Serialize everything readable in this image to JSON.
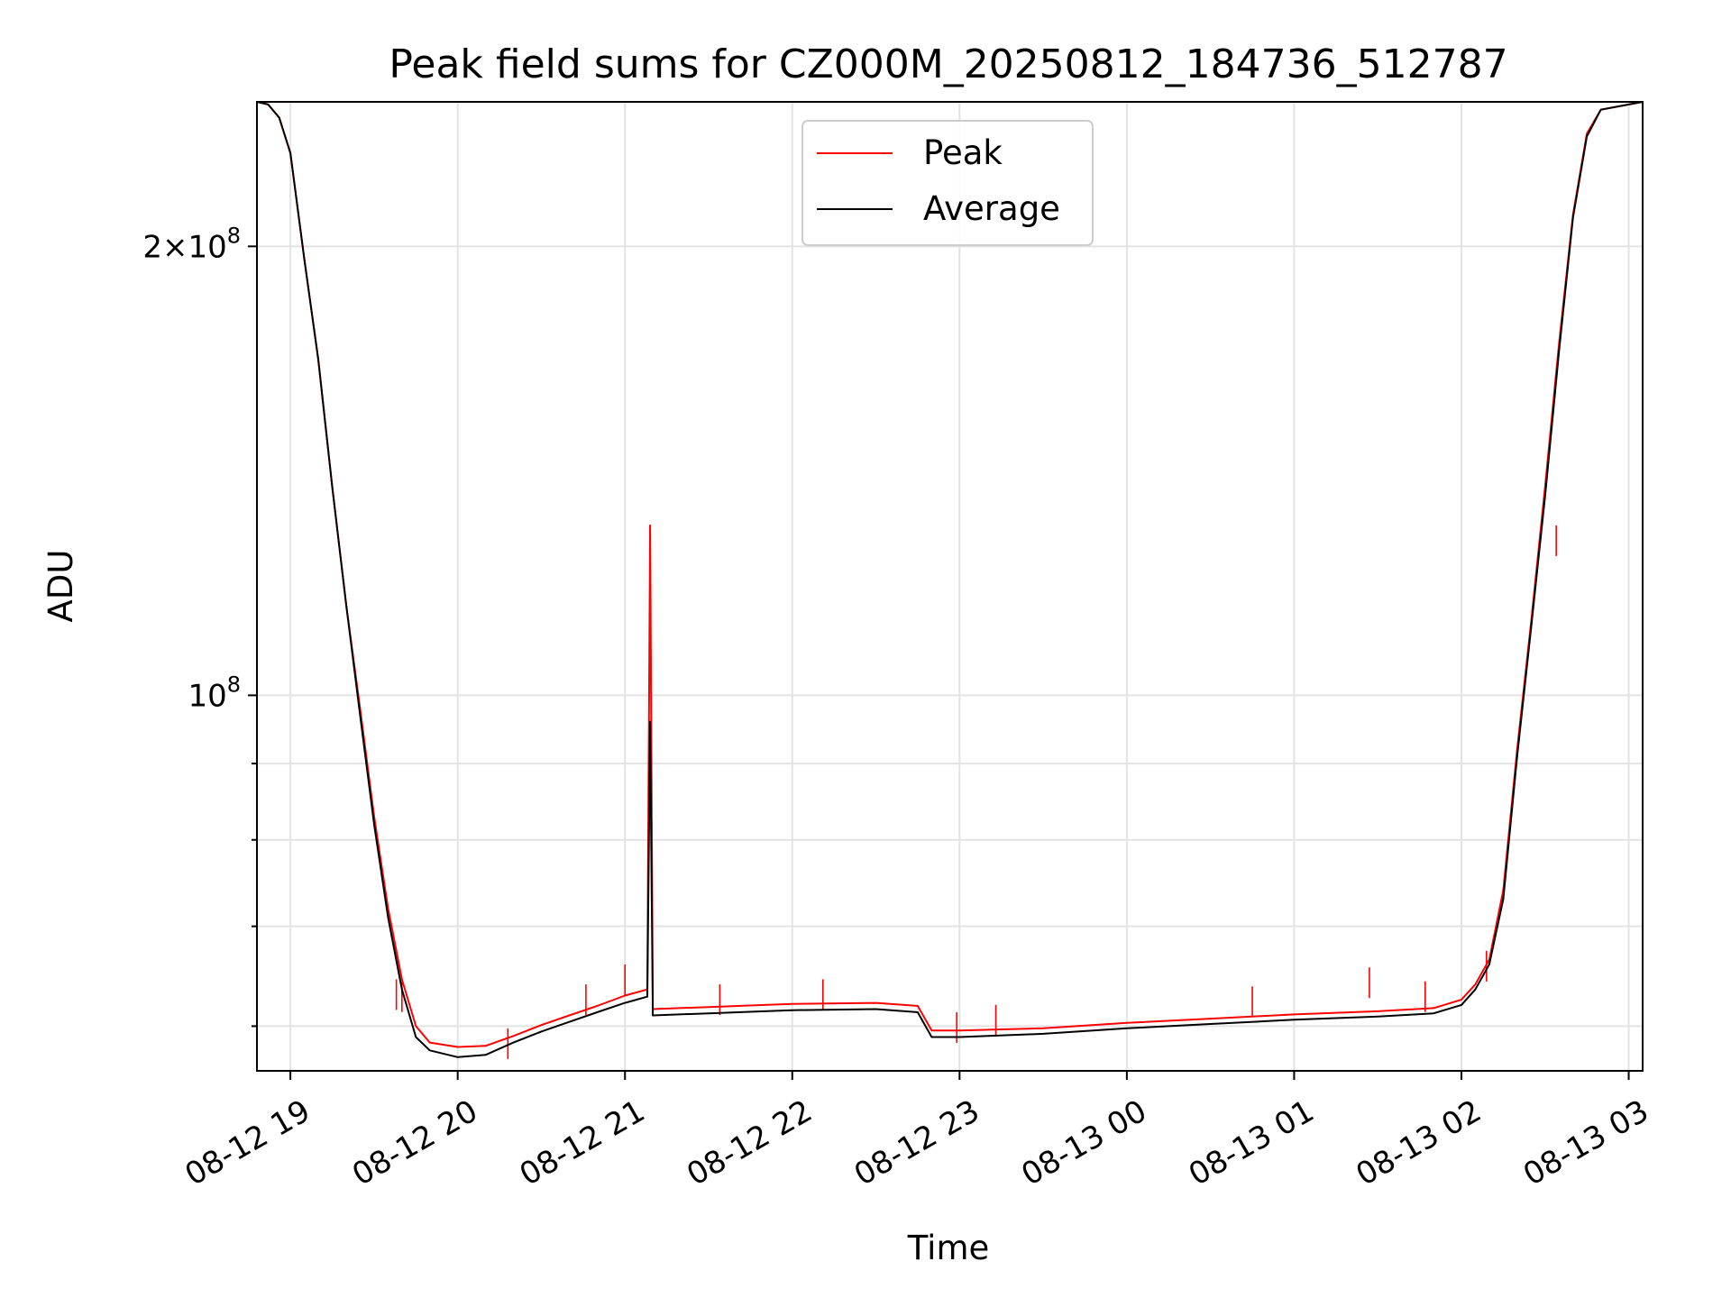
{
  "chart_data": {
    "type": "line",
    "title": "Peak field sums for CZ000M_20250812_184736_512787",
    "xlabel": "Time",
    "ylabel": "ADU",
    "yscale": "log",
    "xlim": [
      "2025-08-12 18:48",
      "2025-08-13 03:05"
    ],
    "ylim": [
      56000000,
      250000000
    ],
    "grid": true,
    "legend": {
      "placement": "top-center",
      "entries": [
        "Peak",
        "Average"
      ]
    },
    "x_ticks": [
      "08-12 19",
      "08-12 20",
      "08-12 21",
      "08-12 22",
      "08-12 23",
      "08-13 00",
      "08-13 01",
      "08-13 02",
      "08-13 03"
    ],
    "y_tick_labels": [
      {
        "value": 200000000,
        "mantissa": "2",
        "exponent": "8"
      },
      {
        "value": 100000000,
        "mantissa": "",
        "exponent": "8"
      }
    ],
    "y_minor_ticks": [
      60000000,
      70000000,
      80000000,
      90000000
    ],
    "series": [
      {
        "name": "Peak",
        "color": "#ff0000",
        "points": [
          [
            "2025-08-12 18:48",
            250000000
          ],
          [
            "2025-08-12 18:52",
            249000000
          ],
          [
            "2025-08-12 18:56",
            244000000
          ],
          [
            "2025-08-12 19:00",
            231000000
          ],
          [
            "2025-08-12 19:05",
            196000000
          ],
          [
            "2025-08-12 19:10",
            168000000
          ],
          [
            "2025-08-12 19:15",
            138000000
          ],
          [
            "2025-08-12 19:20",
            115000000
          ],
          [
            "2025-08-12 19:25",
            98000000
          ],
          [
            "2025-08-12 19:30",
            83000000
          ],
          [
            "2025-08-12 19:35",
            72000000
          ],
          [
            "2025-08-12 19:40",
            64500000
          ],
          [
            "2025-08-12 19:45",
            60000000
          ],
          [
            "2025-08-12 19:50",
            58500000
          ],
          [
            "2025-08-12 20:00",
            58100000
          ],
          [
            "2025-08-12 20:10",
            58200000
          ],
          [
            "2025-08-12 20:20",
            59100000
          ],
          [
            "2025-08-12 20:30",
            60100000
          ],
          [
            "2025-08-12 20:40",
            61000000
          ],
          [
            "2025-08-12 20:50",
            61900000
          ],
          [
            "2025-08-12 21:00",
            62900000
          ],
          [
            "2025-08-12 21:08",
            63500000
          ],
          [
            "2025-08-12 21:09",
            130000000
          ],
          [
            "2025-08-12 21:10",
            61600000
          ],
          [
            "2025-08-12 21:30",
            61800000
          ],
          [
            "2025-08-12 21:50",
            62000000
          ],
          [
            "2025-08-12 22:00",
            62100000
          ],
          [
            "2025-08-12 22:30",
            62200000
          ],
          [
            "2025-08-12 22:45",
            61900000
          ],
          [
            "2025-08-12 22:50",
            59600000
          ],
          [
            "2025-08-12 23:00",
            59600000
          ],
          [
            "2025-08-12 23:30",
            59800000
          ],
          [
            "2025-08-13 00:00",
            60300000
          ],
          [
            "2025-08-13 00:30",
            60700000
          ],
          [
            "2025-08-13 01:00",
            61100000
          ],
          [
            "2025-08-13 01:30",
            61400000
          ],
          [
            "2025-08-13 01:50",
            61700000
          ],
          [
            "2025-08-13 02:00",
            62500000
          ],
          [
            "2025-08-13 02:05",
            64000000
          ],
          [
            "2025-08-13 02:10",
            66500000
          ],
          [
            "2025-08-13 02:15",
            74000000
          ],
          [
            "2025-08-13 02:20",
            92000000
          ],
          [
            "2025-08-13 02:25",
            112000000
          ],
          [
            "2025-08-13 02:30",
            138000000
          ],
          [
            "2025-08-13 02:35",
            172000000
          ],
          [
            "2025-08-13 02:40",
            210000000
          ],
          [
            "2025-08-13 02:45",
            238000000
          ],
          [
            "2025-08-13 02:50",
            247000000
          ],
          [
            "2025-08-13 03:05",
            250000000
          ]
        ],
        "spikes": [
          [
            "2025-08-12 19:38",
            64500000
          ],
          [
            "2025-08-12 19:40",
            64300000
          ],
          [
            "2025-08-12 20:18",
            59800000
          ],
          [
            "2025-08-12 20:46",
            64000000
          ],
          [
            "2025-08-12 21:00",
            66000000
          ],
          [
            "2025-08-12 21:09",
            130000000
          ],
          [
            "2025-08-12 21:34",
            64000000
          ],
          [
            "2025-08-12 22:11",
            64500000
          ],
          [
            "2025-08-12 22:59",
            61300000
          ],
          [
            "2025-08-12 23:13",
            62000000
          ],
          [
            "2025-08-13 00:45",
            63800000
          ],
          [
            "2025-08-13 01:27",
            65700000
          ],
          [
            "2025-08-13 01:47",
            64300000
          ],
          [
            "2025-08-13 02:09",
            67400000
          ],
          [
            "2025-08-13 02:34",
            130000000
          ]
        ]
      },
      {
        "name": "Average",
        "color": "#000000",
        "points": [
          [
            "2025-08-12 18:48",
            250000000
          ],
          [
            "2025-08-12 18:52",
            249000000
          ],
          [
            "2025-08-12 18:56",
            244000000
          ],
          [
            "2025-08-12 19:00",
            231000000
          ],
          [
            "2025-08-12 19:05",
            196000000
          ],
          [
            "2025-08-12 19:10",
            168000000
          ],
          [
            "2025-08-12 19:15",
            138000000
          ],
          [
            "2025-08-12 19:20",
            115000000
          ],
          [
            "2025-08-12 19:25",
            97000000
          ],
          [
            "2025-08-12 19:30",
            82000000
          ],
          [
            "2025-08-12 19:35",
            71000000
          ],
          [
            "2025-08-12 19:40",
            63500000
          ],
          [
            "2025-08-12 19:45",
            59000000
          ],
          [
            "2025-08-12 19:50",
            57800000
          ],
          [
            "2025-08-12 20:00",
            57200000
          ],
          [
            "2025-08-12 20:10",
            57400000
          ],
          [
            "2025-08-12 20:20",
            58500000
          ],
          [
            "2025-08-12 20:30",
            59500000
          ],
          [
            "2025-08-12 20:40",
            60400000
          ],
          [
            "2025-08-12 20:50",
            61300000
          ],
          [
            "2025-08-12 21:00",
            62200000
          ],
          [
            "2025-08-12 21:08",
            62800000
          ],
          [
            "2025-08-12 21:09",
            96000000
          ],
          [
            "2025-08-12 21:10",
            61000000
          ],
          [
            "2025-08-12 21:30",
            61200000
          ],
          [
            "2025-08-12 21:50",
            61400000
          ],
          [
            "2025-08-12 22:00",
            61500000
          ],
          [
            "2025-08-12 22:30",
            61600000
          ],
          [
            "2025-08-12 22:45",
            61300000
          ],
          [
            "2025-08-12 22:50",
            59000000
          ],
          [
            "2025-08-12 23:00",
            59000000
          ],
          [
            "2025-08-12 23:30",
            59300000
          ],
          [
            "2025-08-13 00:00",
            59800000
          ],
          [
            "2025-08-13 00:30",
            60200000
          ],
          [
            "2025-08-13 01:00",
            60600000
          ],
          [
            "2025-08-13 01:30",
            60900000
          ],
          [
            "2025-08-13 01:50",
            61200000
          ],
          [
            "2025-08-13 02:00",
            62000000
          ],
          [
            "2025-08-13 02:05",
            63500000
          ],
          [
            "2025-08-13 02:10",
            66000000
          ],
          [
            "2025-08-13 02:15",
            73000000
          ],
          [
            "2025-08-13 02:20",
            91000000
          ],
          [
            "2025-08-13 02:25",
            111000000
          ],
          [
            "2025-08-13 02:30",
            136000000
          ],
          [
            "2025-08-13 02:35",
            170000000
          ],
          [
            "2025-08-13 02:40",
            209000000
          ],
          [
            "2025-08-13 02:45",
            237000000
          ],
          [
            "2025-08-13 02:50",
            247000000
          ],
          [
            "2025-08-13 03:05",
            250000000
          ]
        ]
      }
    ]
  }
}
